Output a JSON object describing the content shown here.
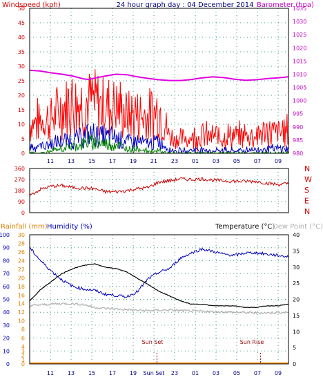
{
  "page": {
    "title": "24 hour graph day : 04 December 2014",
    "colors": {
      "background": "#ffffff",
      "grid_dots": "#3d9a8a",
      "axis_left_wind": "#d40000",
      "axis_right_baro": "#c000c0",
      "axis_left_rain": "#e08000",
      "axis_left_humidity": "#0000c0",
      "axis_right_temp": "#000000",
      "axis_time": "#000080"
    }
  },
  "chart_data": [
    {
      "type": "line",
      "id": "wind_baro",
      "labels": {
        "left": "Windspeed (kph)",
        "right": "Barometer (hpa)"
      },
      "y_left": {
        "min": 0,
        "max": 50,
        "ticks": [
          0,
          5,
          10,
          15,
          20,
          25,
          30,
          35,
          40,
          45,
          50
        ]
      },
      "y_right": {
        "min": 980,
        "max": 1035,
        "ticks": [
          980,
          985,
          990,
          995,
          1000,
          1005,
          1010,
          1015,
          1020,
          1025,
          1030,
          1035
        ]
      },
      "x_ticks": [
        "11",
        "13",
        "15",
        "17",
        "19",
        "21",
        "23",
        "01",
        "03",
        "05",
        "07",
        "09"
      ],
      "series": [
        {
          "name": "Barometer",
          "axis": "right",
          "color": "#e000e0",
          "x": [
            0,
            1,
            2,
            3,
            4,
            5,
            5.5,
            6,
            7,
            8,
            9,
            10,
            11,
            12,
            13,
            14,
            15,
            16,
            17,
            18,
            19,
            20,
            21,
            22,
            23,
            24
          ],
          "y": [
            1011.5,
            1011.2,
            1010.5,
            1010,
            1009.3,
            1008.2,
            1008,
            1008.5,
            1009.3,
            1010,
            1009.8,
            1009,
            1008.4,
            1007.9,
            1007.6,
            1007.6,
            1008,
            1008.6,
            1009,
            1008.7,
            1008.1,
            1007.7,
            1007.9,
            1008.3,
            1008.6,
            1009
          ]
        },
        {
          "name": "Gust",
          "axis": "left",
          "color": "#ff0000",
          "x": [
            0,
            1,
            2,
            3,
            4,
            5,
            6,
            7,
            8,
            9,
            10,
            11,
            12,
            13,
            14,
            15,
            16,
            17,
            18,
            19,
            20,
            21,
            22,
            23,
            24
          ],
          "y": [
            13,
            14,
            15,
            19,
            23,
            21,
            22,
            20,
            21,
            16,
            17,
            16,
            19,
            7,
            6,
            7,
            8,
            7,
            8,
            7,
            8,
            8,
            9,
            9,
            10
          ]
        },
        {
          "name": "Average",
          "axis": "left",
          "color": "#0000c0",
          "x": [
            0,
            1,
            2,
            3,
            4,
            5,
            6,
            7,
            8,
            9,
            10,
            11,
            12,
            13,
            14,
            15,
            16,
            17,
            18,
            19,
            20,
            21,
            22,
            23,
            24
          ],
          "y": [
            3,
            3,
            4,
            5,
            6,
            7,
            8,
            7,
            7,
            5,
            5,
            4,
            5,
            1.5,
            1,
            1.5,
            1.5,
            1,
            1.5,
            1,
            1.5,
            1.5,
            2,
            2,
            2
          ]
        },
        {
          "name": "Low",
          "axis": "left",
          "color": "#008000",
          "x": [
            0,
            1,
            2,
            3,
            4,
            5,
            6,
            7,
            8,
            9,
            10,
            11,
            12,
            13,
            14,
            15,
            16,
            17,
            18,
            19,
            20,
            21,
            22,
            23,
            24
          ],
          "y": [
            0,
            0,
            1,
            2,
            3,
            4,
            5,
            4,
            4,
            2,
            2,
            1,
            1,
            0,
            0,
            0,
            0,
            0,
            0,
            0,
            0,
            0,
            0,
            0,
            0
          ]
        }
      ]
    },
    {
      "type": "line",
      "id": "wind_direction",
      "labels": {
        "right": [
          "N",
          "W",
          "S",
          "E",
          "N"
        ]
      },
      "y_left": {
        "min": 0,
        "max": 360,
        "ticks": [
          0,
          90,
          180,
          270,
          360
        ]
      },
      "x_ticks": [],
      "series": [
        {
          "name": "Direction",
          "color": "#cc0000",
          "x": [
            0,
            1,
            2,
            3,
            4,
            5,
            6,
            7,
            8,
            9,
            10,
            11,
            12,
            13,
            14,
            15,
            16,
            17,
            18,
            19,
            20,
            21,
            22,
            23,
            24
          ],
          "y": [
            140,
            190,
            215,
            220,
            205,
            200,
            195,
            170,
            170,
            180,
            195,
            205,
            250,
            260,
            275,
            270,
            275,
            265,
            260,
            255,
            255,
            255,
            240,
            230,
            235
          ]
        }
      ]
    },
    {
      "type": "line",
      "id": "temp_hum_rain",
      "labels": {
        "rain": "Rainfall (mm)",
        "humidity": "Humidity (%)",
        "temp": "Temperature (°C)",
        "dew": "Dew Point (°C)",
        "sunset": "Sun Set",
        "sunrise": "Sun Rise"
      },
      "y_humidity": {
        "min": 0,
        "max": 100,
        "ticks": [
          0,
          10,
          20,
          30,
          40,
          50,
          60,
          70,
          80,
          90,
          100
        ]
      },
      "y_rain": {
        "min": 0,
        "max": 30,
        "ticks": [
          0,
          1,
          2,
          3,
          4,
          6,
          8,
          10,
          12,
          14,
          16,
          18,
          20,
          22,
          24,
          26,
          28,
          30
        ]
      },
      "y_temp": {
        "min": 0,
        "max": 40,
        "ticks": [
          0,
          5,
          10,
          15,
          20,
          25,
          30,
          35,
          40
        ]
      },
      "x_ticks": [
        "11",
        "13",
        "15",
        "17",
        "19",
        "Sun Set",
        "23",
        "01",
        "03",
        "05",
        "07",
        "09"
      ],
      "events": {
        "sunset_x": 11.8,
        "sunrise_x": 21.4
      },
      "series": [
        {
          "name": "Humidity",
          "axis": "humidity",
          "color": "#0000c0",
          "x": [
            0,
            1,
            2,
            3,
            4,
            5,
            6,
            7,
            8,
            9,
            10,
            11,
            12,
            13,
            14,
            15,
            16,
            17,
            18,
            19,
            20,
            21,
            22,
            23,
            24
          ],
          "y": [
            90,
            80,
            72,
            65,
            60,
            58,
            57,
            54,
            53,
            52,
            56,
            66,
            71,
            74,
            82,
            86,
            89,
            87,
            85,
            84,
            86,
            86,
            85,
            84,
            83
          ]
        },
        {
          "name": "Temperature",
          "axis": "temp",
          "color": "#000000",
          "x": [
            0,
            1,
            2,
            3,
            4,
            5,
            6,
            7,
            8,
            9,
            10,
            11,
            12,
            13,
            14,
            15,
            16,
            17,
            18,
            19,
            20,
            21,
            22,
            23,
            24
          ],
          "y": [
            19.5,
            23,
            25.5,
            28,
            29.5,
            30.5,
            31,
            30,
            29.5,
            28.5,
            26.5,
            24.5,
            22.5,
            21,
            19.5,
            18.5,
            18.5,
            18,
            18,
            18,
            17.5,
            17.5,
            18,
            18,
            18.5
          ]
        },
        {
          "name": "Dew Point",
          "axis": "temp",
          "color": "#b0b0b0",
          "x": [
            0,
            1,
            2,
            3,
            4,
            5,
            6,
            7,
            8,
            9,
            10,
            11,
            12,
            13,
            14,
            15,
            16,
            17,
            18,
            19,
            20,
            21,
            22,
            23,
            24
          ],
          "y": [
            18,
            18.3,
            18.5,
            18.7,
            18.6,
            18.4,
            17.5,
            17.2,
            17,
            16.8,
            16.6,
            16.5,
            16.6,
            16.7,
            16.5,
            16.4,
            16.3,
            16.2,
            16.1,
            16,
            15.9,
            15.8,
            15.8,
            15.9,
            16
          ]
        },
        {
          "name": "Rainfall",
          "axis": "rain",
          "color": "#ff8800",
          "x": [
            0,
            24
          ],
          "y": [
            0,
            0
          ]
        }
      ]
    }
  ]
}
